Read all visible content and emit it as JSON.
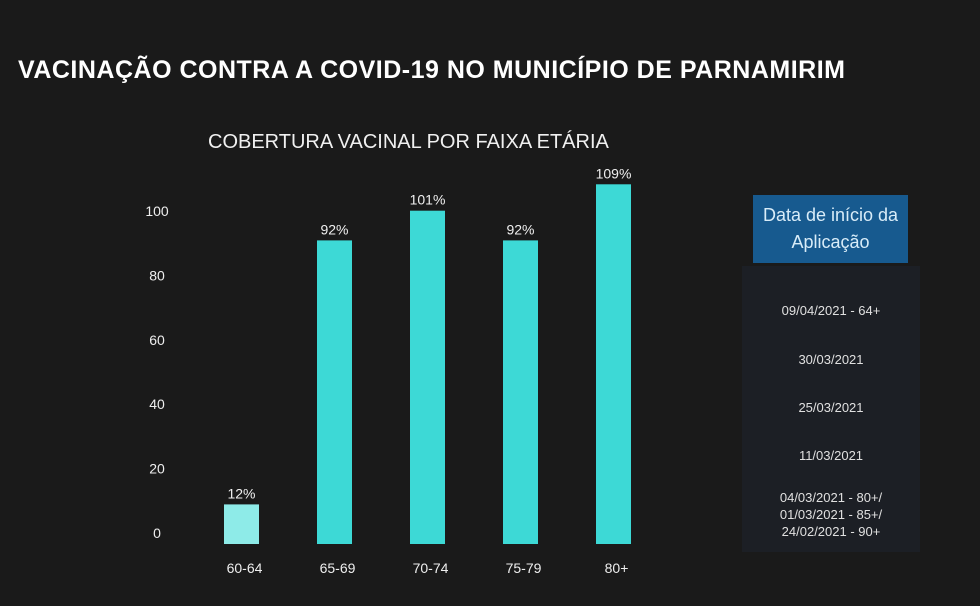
{
  "title": "VACINAÇÃO CONTRA A COVID-19 NO MUNICÍPIO DE PARNAMIRIM",
  "chart_data": {
    "type": "bar",
    "title": "COBERTURA VACINAL POR FAIXA ETÁRIA",
    "categories": [
      "60-64",
      "65-69",
      "70-74",
      "75-79",
      "80+"
    ],
    "values": [
      12,
      92,
      101,
      92,
      109
    ],
    "data_labels": [
      "12%",
      "92%",
      "101%",
      "92%",
      "109%"
    ],
    "yticks": [
      0,
      20,
      40,
      60,
      80,
      100
    ],
    "ylim": [
      0,
      110
    ],
    "grid": false,
    "colors": {
      "highlight": "#8eebe8",
      "bar": "#3dd9d6"
    },
    "highlighted_category": "60-64"
  },
  "legend": {
    "header": "Data de início da Aplicação",
    "items": [
      "09/04/2021 - 64+",
      "30/03/2021",
      "25/03/2021",
      "11/03/2021",
      "04/03/2021 - 80+/\n01/03/2021 - 85+/\n24/02/2021 - 90+"
    ]
  }
}
